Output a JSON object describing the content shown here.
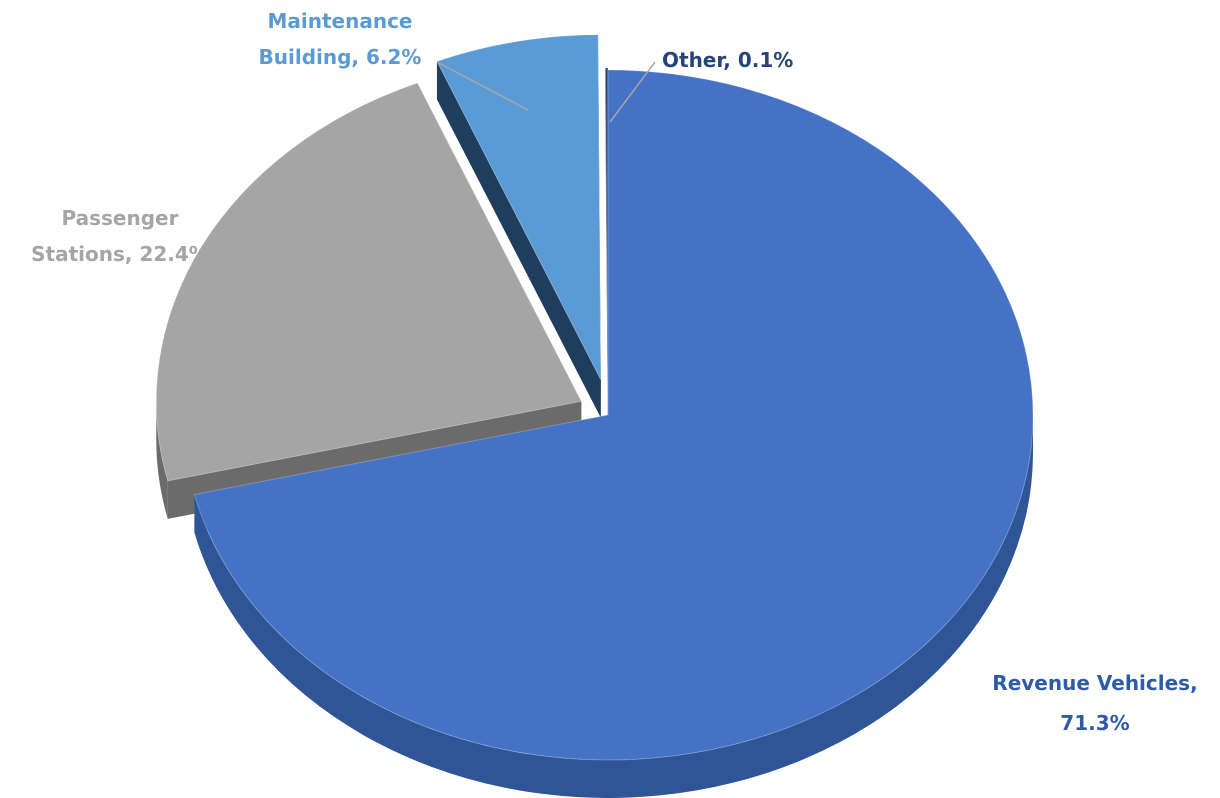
{
  "chart_data": {
    "type": "pie",
    "style": "3d-exploded",
    "title": "",
    "slices": [
      {
        "name": "Revenue Vehicles",
        "value": 71.3,
        "label_lines": [
          "Revenue Vehicles,",
          "71.3%"
        ],
        "color": "#4472C4",
        "side_color": "#2F5597",
        "label_color": "#2E5BA8"
      },
      {
        "name": "Passenger Stations",
        "value": 22.4,
        "label_lines": [
          "Passenger",
          "Stations, 22.4%"
        ],
        "color": "#A5A5A5",
        "side_color": "#6B6B6B",
        "label_color": "#A5A5A5"
      },
      {
        "name": "Maintenance Building",
        "value": 6.2,
        "label_lines": [
          "Maintenance",
          "Building, 6.2%"
        ],
        "color": "#5B9BD5",
        "side_color": "#1F3E5E",
        "label_color": "#5B9BD5"
      },
      {
        "name": "Other",
        "value": 0.1,
        "label_lines": [
          "Other, 0.1%"
        ],
        "color": "#264478",
        "side_color": "#1A2F55",
        "label_color": "#264478"
      }
    ]
  }
}
